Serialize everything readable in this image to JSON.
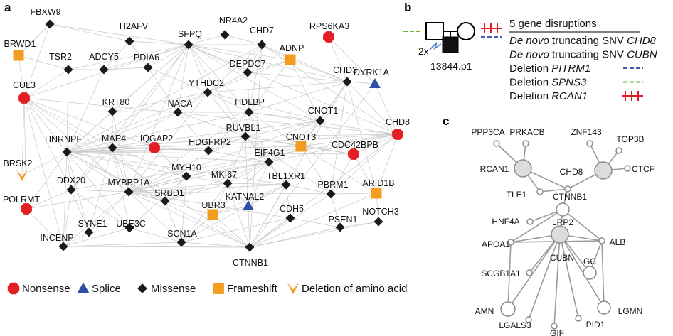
{
  "panel_labels": {
    "a": "a",
    "b": "b",
    "c": "c"
  },
  "colors": {
    "nonsense": "#e31e24",
    "splice": "#2e4fa3",
    "missense": "#1a1a1a",
    "frameshift": "#f39c1f",
    "deletion": "#f39c1f",
    "green": "#6ab23e",
    "blue": "#4a55b5",
    "red": "#e31e24"
  },
  "legend": [
    {
      "shape": "octagon",
      "label": "Nonsense"
    },
    {
      "shape": "triangle",
      "label": "Splice"
    },
    {
      "shape": "diamond",
      "label": "Missense"
    },
    {
      "shape": "square",
      "label": "Frameshift"
    },
    {
      "shape": "chevron",
      "label": "Deletion of amino acid"
    }
  ],
  "network_a": {
    "nodes": [
      {
        "id": "FBXW9",
        "type": "missense"
      },
      {
        "id": "H2AFV",
        "type": "missense"
      },
      {
        "id": "NR4A2",
        "type": "missense"
      },
      {
        "id": "CHD7",
        "type": "missense"
      },
      {
        "id": "RPS6KA3",
        "type": "nonsense"
      },
      {
        "id": "BRWD1",
        "type": "frameshift"
      },
      {
        "id": "TSR2",
        "type": "missense"
      },
      {
        "id": "ADCY5",
        "type": "missense"
      },
      {
        "id": "PDIA6",
        "type": "missense"
      },
      {
        "id": "SFPQ",
        "type": "missense"
      },
      {
        "id": "DEPDC7",
        "type": "missense"
      },
      {
        "id": "ADNP",
        "type": "frameshift"
      },
      {
        "id": "CHD3",
        "type": "missense"
      },
      {
        "id": "DYRK1A",
        "type": "splice"
      },
      {
        "id": "CUL3",
        "type": "nonsense"
      },
      {
        "id": "YTHDC2",
        "type": "missense"
      },
      {
        "id": "KRT80",
        "type": "missense"
      },
      {
        "id": "NACA",
        "type": "missense"
      },
      {
        "id": "HDLBP",
        "type": "missense"
      },
      {
        "id": "CNOT1",
        "type": "missense"
      },
      {
        "id": "CHD8",
        "type": "nonsense"
      },
      {
        "id": "RUVBL1",
        "type": "missense"
      },
      {
        "id": "HNRNPF",
        "type": "missense"
      },
      {
        "id": "MAP4",
        "type": "missense"
      },
      {
        "id": "IQGAP2",
        "type": "nonsense"
      },
      {
        "id": "HDGFRP2",
        "type": "missense"
      },
      {
        "id": "CNOT3",
        "type": "frameshift"
      },
      {
        "id": "CDC42BPB",
        "type": "nonsense"
      },
      {
        "id": "EIF4G1",
        "type": "missense"
      },
      {
        "id": "BRSK2",
        "type": "deletion"
      },
      {
        "id": "MYH10",
        "type": "missense"
      },
      {
        "id": "MKI67",
        "type": "missense"
      },
      {
        "id": "TBL1XR1",
        "type": "missense"
      },
      {
        "id": "ARID1B",
        "type": "frameshift"
      },
      {
        "id": "DDX20",
        "type": "missense"
      },
      {
        "id": "MYBBP1A",
        "type": "missense"
      },
      {
        "id": "SRBD1",
        "type": "missense"
      },
      {
        "id": "KATNAL2",
        "type": "splice"
      },
      {
        "id": "PBRM1",
        "type": "missense"
      },
      {
        "id": "POLRMT",
        "type": "nonsense"
      },
      {
        "id": "UBR3",
        "type": "frameshift"
      },
      {
        "id": "CDH5",
        "type": "missense"
      },
      {
        "id": "SYNE1",
        "type": "missense"
      },
      {
        "id": "UBE3C",
        "type": "missense"
      },
      {
        "id": "SCN1A",
        "type": "missense"
      },
      {
        "id": "PSEN1",
        "type": "missense"
      },
      {
        "id": "NOTCH3",
        "type": "missense"
      },
      {
        "id": "INCENP",
        "type": "missense"
      },
      {
        "id": "CTNNB1",
        "type": "missense"
      }
    ],
    "edges": [
      [
        "SFPQ",
        "FBXW9"
      ],
      [
        "SFPQ",
        "H2AFV"
      ],
      [
        "SFPQ",
        "NR4A2"
      ],
      [
        "SFPQ",
        "CHD7"
      ],
      [
        "SFPQ",
        "TSR2"
      ],
      [
        "SFPQ",
        "ADCY5"
      ],
      [
        "SFPQ",
        "PDIA6"
      ],
      [
        "SFPQ",
        "DEPDC7"
      ],
      [
        "SFPQ",
        "ADNP"
      ],
      [
        "SFPQ",
        "CHD3"
      ],
      [
        "SFPQ",
        "CUL3"
      ],
      [
        "SFPQ",
        "YTHDC2"
      ],
      [
        "SFPQ",
        "HDLBP"
      ],
      [
        "SFPQ",
        "NACA"
      ],
      [
        "SFPQ",
        "KRT80"
      ],
      [
        "SFPQ",
        "CNOT1"
      ],
      [
        "SFPQ",
        "HNRNPF"
      ],
      [
        "SFPQ",
        "RUVBL1"
      ],
      [
        "SFPQ",
        "MAP4"
      ],
      [
        "SFPQ",
        "CHD8"
      ],
      [
        "SFPQ",
        "MYBBP1A"
      ],
      [
        "SFPQ",
        "DDX20"
      ],
      [
        "CHD7",
        "CHD3"
      ],
      [
        "CHD7",
        "CHD8"
      ],
      [
        "CHD7",
        "ADNP"
      ],
      [
        "CHD7",
        "DEPDC7"
      ],
      [
        "CHD7",
        "HNRNPF"
      ],
      [
        "CHD7",
        "YTHDC2"
      ],
      [
        "CHD7",
        "HDLBP"
      ],
      [
        "CHD7",
        "CTNNB1"
      ],
      [
        "CHD8",
        "CHD3"
      ],
      [
        "CHD8",
        "CTNNB1"
      ],
      [
        "CHD8",
        "CNOT3"
      ],
      [
        "CHD8",
        "CDC42BPB"
      ],
      [
        "CHD8",
        "HNRNPF"
      ],
      [
        "CHD8",
        "DYRK1A"
      ],
      [
        "CHD8",
        "HDLBP"
      ],
      [
        "CHD8",
        "RUVBL1"
      ],
      [
        "CHD8",
        "ARID1B"
      ],
      [
        "CHD8",
        "PBRM1"
      ],
      [
        "CHD8",
        "MYBBP1A"
      ],
      [
        "CHD8",
        "DDX20"
      ],
      [
        "CTNNB1",
        "CDH5"
      ],
      [
        "CTNNB1",
        "PSEN1"
      ],
      [
        "CTNNB1",
        "NOTCH3"
      ],
      [
        "CTNNB1",
        "TBL1XR1"
      ],
      [
        "CTNNB1",
        "PBRM1"
      ],
      [
        "CTNNB1",
        "SCN1A"
      ],
      [
        "CTNNB1",
        "INCENP"
      ],
      [
        "CTNNB1",
        "CUL3"
      ],
      [
        "CTNNB1",
        "HNRNPF"
      ],
      [
        "CTNNB1",
        "RUVBL1"
      ],
      [
        "CTNNB1",
        "MKI67"
      ],
      [
        "CTNNB1",
        "ARID1B"
      ],
      [
        "CTNNB1",
        "UBR3"
      ],
      [
        "CTNNB1",
        "DYRK1A"
      ],
      [
        "CTNNB1",
        "CHD3"
      ],
      [
        "CTNNB1",
        "MYBBP1A"
      ],
      [
        "HNRNPF",
        "TSR2"
      ],
      [
        "HNRNPF",
        "ADCY5"
      ],
      [
        "HNRNPF",
        "KRT80"
      ],
      [
        "HNRNPF",
        "NACA"
      ],
      [
        "HNRNPF",
        "MAP4"
      ],
      [
        "HNRNPF",
        "IQGAP2"
      ],
      [
        "HNRNPF",
        "HDGFRP2"
      ],
      [
        "HNRNPF",
        "HDLBP"
      ],
      [
        "HNRNPF",
        "CNOT1"
      ],
      [
        "HNRNPF",
        "CNOT3"
      ],
      [
        "HNRNPF",
        "EIF4G1"
      ],
      [
        "HNRNPF",
        "RUVBL1"
      ],
      [
        "HNRNPF",
        "YTHDC2"
      ],
      [
        "HNRNPF",
        "DDX20"
      ],
      [
        "HNRNPF",
        "SYNE1"
      ],
      [
        "HNRNPF",
        "INCENP"
      ],
      [
        "HNRNPF",
        "MYBBP1A"
      ],
      [
        "HNRNPF",
        "BRSK2"
      ],
      [
        "HNRNPF",
        "POLRMT"
      ],
      [
        "HNRNPF",
        "CUL3"
      ],
      [
        "HNRNPF",
        "UBE3C"
      ],
      [
        "HNRNPF",
        "MYH10"
      ],
      [
        "HNRNPF",
        "SRBD1"
      ],
      [
        "HNRNPF",
        "CDC42BPB"
      ],
      [
        "HNRNPF",
        "TBL1XR1"
      ],
      [
        "CUL3",
        "BRWD1"
      ],
      [
        "CUL3",
        "FBXW9"
      ],
      [
        "CUL3",
        "TSR2"
      ],
      [
        "CUL3",
        "DDX20"
      ],
      [
        "CUL3",
        "POLRMT"
      ],
      [
        "CUL3",
        "BRSK2"
      ],
      [
        "CUL3",
        "INCENP"
      ],
      [
        "CUL3",
        "MAP4"
      ],
      [
        "CUL3",
        "CHD8"
      ],
      [
        "CUL3",
        "MYBBP1A"
      ],
      [
        "CUL3",
        "IQGAP2"
      ],
      [
        "MYBBP1A",
        "RUVBL1"
      ],
      [
        "MYBBP1A",
        "HDLBP"
      ],
      [
        "MYBBP1A",
        "EIF4G1"
      ],
      [
        "MYBBP1A",
        "MKI67"
      ],
      [
        "MYBBP1A",
        "SRBD1"
      ],
      [
        "MYBBP1A",
        "UBE3C"
      ],
      [
        "MYBBP1A",
        "DDX20"
      ],
      [
        "MYBBP1A",
        "INCENP"
      ],
      [
        "MYBBP1A",
        "MYH10"
      ],
      [
        "MYBBP1A",
        "SCN1A"
      ],
      [
        "MYBBP1A",
        "SYNE1"
      ],
      [
        "MYBBP1A",
        "UBR3"
      ],
      [
        "MYBBP1A",
        "POLRMT"
      ],
      [
        "MYBBP1A",
        "MAP4"
      ],
      [
        "MYBBP1A",
        "CNOT1"
      ],
      [
        "MYBBP1A",
        "TBL1XR1"
      ],
      [
        "MYBBP1A",
        "PBRM1"
      ],
      [
        "MYBBP1A",
        "CNOT3"
      ],
      [
        "MYBBP1A",
        "CDH5"
      ],
      [
        "MYBBP1A",
        "KRT80"
      ],
      [
        "MYBBP1A",
        "YTHDC2"
      ],
      [
        "DDX20",
        "INCENP"
      ],
      [
        "DDX20",
        "SYNE1"
      ],
      [
        "DDX20",
        "POLRMT"
      ],
      [
        "DDX20",
        "MAP4"
      ],
      [
        "DDX20",
        "UBE3C"
      ],
      [
        "RUVBL1",
        "HDLBP"
      ],
      [
        "RUVBL1",
        "CNOT1"
      ],
      [
        "RUVBL1",
        "CNOT3"
      ],
      [
        "RUVBL1",
        "EIF4G1"
      ],
      [
        "RUVBL1",
        "MKI67"
      ],
      [
        "RUVBL1",
        "TBL1XR1"
      ],
      [
        "RUVBL1",
        "HDGFRP2"
      ],
      [
        "RUVBL1",
        "YTHDC2"
      ],
      [
        "RUVBL1",
        "NACA"
      ],
      [
        "RUVBL1",
        "CDC42BPB"
      ],
      [
        "RUVBL1",
        "MAP4"
      ],
      [
        "RUVBL1",
        "PBRM1"
      ],
      [
        "HDLBP",
        "CNOT1"
      ],
      [
        "HDLBP",
        "CNOT3"
      ],
      [
        "HDLBP",
        "YTHDC2"
      ],
      [
        "HDLBP",
        "NACA"
      ],
      [
        "HDLBP",
        "DEPDC7"
      ],
      [
        "HDLBP",
        "ADNP"
      ],
      [
        "HDLBP",
        "CHD3"
      ],
      [
        "HDLBP",
        "EIF4G1"
      ],
      [
        "HDLBP",
        "HDGFRP2"
      ],
      [
        "CNOT1",
        "CNOT3"
      ],
      [
        "CNOT1",
        "CHD3"
      ],
      [
        "CNOT1",
        "ADNP"
      ],
      [
        "CNOT1",
        "YTHDC2"
      ],
      [
        "CNOT1",
        "CDC42BPB"
      ],
      [
        "CNOT1",
        "EIF4G1"
      ],
      [
        "CHD3",
        "ADNP"
      ],
      [
        "CHD3",
        "DEPDC7"
      ],
      [
        "CHD3",
        "CNOT3"
      ],
      [
        "CHD3",
        "DYRK1A"
      ],
      [
        "CHD3",
        "RPS6KA3"
      ],
      [
        "CHD3",
        "YTHDC2"
      ],
      [
        "CHD3",
        "PBRM1"
      ],
      [
        "CHD3",
        "ARID1B"
      ],
      [
        "EIF4G1",
        "MKI67"
      ],
      [
        "EIF4G1",
        "TBL1XR1"
      ],
      [
        "EIF4G1",
        "MYH10"
      ],
      [
        "EIF4G1",
        "SRBD1"
      ],
      [
        "EIF4G1",
        "CNOT3"
      ],
      [
        "EIF4G1",
        "KATNAL2"
      ],
      [
        "EIF4G1",
        "UBR3"
      ],
      [
        "TBL1XR1",
        "PBRM1"
      ],
      [
        "TBL1XR1",
        "MKI67"
      ],
      [
        "TBL1XR1",
        "KATNAL2"
      ],
      [
        "TBL1XR1",
        "CDH5"
      ],
      [
        "TBL1XR1",
        "SCN1A"
      ],
      [
        "TBL1XR1",
        "UBR3"
      ],
      [
        "PBRM1",
        "ARID1B"
      ],
      [
        "PBRM1",
        "CNOT3"
      ],
      [
        "PBRM1",
        "CDC42BPB"
      ],
      [
        "PBRM1",
        "PSEN1"
      ],
      [
        "PSEN1",
        "NOTCH3"
      ],
      [
        "PSEN1",
        "CDH5"
      ],
      [
        "NOTCH3",
        "ARID1B"
      ],
      [
        "MAP4",
        "IQGAP2"
      ],
      [
        "MAP4",
        "KRT80"
      ],
      [
        "MAP4",
        "NACA"
      ],
      [
        "MAP4",
        "HDGFRP2"
      ],
      [
        "MAP4",
        "MYH10"
      ],
      [
        "MAP4",
        "SYNE1"
      ],
      [
        "MAP4",
        "UBE3C"
      ],
      [
        "MAP4",
        "SRBD1"
      ],
      [
        "MYH10",
        "MKI67"
      ],
      [
        "MYH10",
        "SRBD1"
      ],
      [
        "MYH10",
        "IQGAP2"
      ],
      [
        "MYH10",
        "UBE3C"
      ],
      [
        "MYH10",
        "SCN1A"
      ],
      [
        "MKI67",
        "SRBD1"
      ],
      [
        "MKI67",
        "KATNAL2"
      ],
      [
        "MKI67",
        "UBR3"
      ],
      [
        "MKI67",
        "SCN1A"
      ],
      [
        "SCN1A",
        "UBE3C"
      ],
      [
        "SCN1A",
        "UBR3"
      ],
      [
        "SCN1A",
        "SRBD1"
      ],
      [
        "INCENP",
        "SYNE1"
      ],
      [
        "INCENP",
        "CTNNB1"
      ],
      [
        "INCENP",
        "UBE3C"
      ],
      [
        "INCENP",
        "SCN1A"
      ],
      [
        "INCENP",
        "POLRMT"
      ],
      [
        "YTHDC2",
        "DEPDC7"
      ],
      [
        "YTHDC2",
        "NACA"
      ],
      [
        "YTHDC2",
        "KRT80"
      ],
      [
        "YTHDC2",
        "PDIA6"
      ],
      [
        "YTHDC2",
        "ADNP"
      ],
      [
        "NACA",
        "KRT80"
      ],
      [
        "NACA",
        "PDIA6"
      ],
      [
        "NACA",
        "HDGFRP2"
      ],
      [
        "ADCY5",
        "PDIA6"
      ],
      [
        "ADCY5",
        "TSR2"
      ],
      [
        "H2AFV",
        "PDIA6"
      ],
      [
        "H2AFV",
        "ADCY5"
      ],
      [
        "H2AFV",
        "FBXW9"
      ],
      [
        "NR4A2",
        "CHD7"
      ],
      [
        "DEPDC7",
        "ADNP"
      ],
      [
        "HDGFRP2",
        "IQGAP2"
      ],
      [
        "HDGFRP2",
        "EIF4G1"
      ],
      [
        "CNOT3",
        "CDC42BPB"
      ],
      [
        "CNOT3",
        "ARID1B"
      ],
      [
        "CDC42BPB",
        "ARID1B"
      ],
      [
        "DYRK1A",
        "RPS6KA3"
      ],
      [
        "BRWD1",
        "TSR2"
      ],
      [
        "BRWD1",
        "FBXW9"
      ],
      [
        "KATNAL2",
        "UBR3"
      ],
      [
        "CDH5",
        "SCN1A"
      ]
    ]
  },
  "pedigree": {
    "proband": "13844.p1",
    "multiplier": "2x",
    "title": "5 gene disruptions",
    "items": [
      {
        "prefix": "De novo",
        "rest_plain": " truncating SNV ",
        "gene": "CHD8",
        "mark": "none"
      },
      {
        "prefix": "De novo",
        "rest_plain": " truncating SNV ",
        "gene": "CUBN",
        "mark": "none"
      },
      {
        "prefix": "",
        "rest_plain": "Deletion ",
        "gene": "PITRM1",
        "mark": "blue"
      },
      {
        "prefix": "",
        "rest_plain": "Deletion ",
        "gene": "SPNS3",
        "mark": "green"
      },
      {
        "prefix": "",
        "rest_plain": "Deletion ",
        "gene": "RCAN1",
        "mark": "red"
      }
    ]
  },
  "network_c": {
    "nodes": [
      {
        "id": "PPP3CA",
        "highlight": false
      },
      {
        "id": "PRKACB",
        "highlight": false
      },
      {
        "id": "ZNF143",
        "highlight": false
      },
      {
        "id": "TOP3B",
        "highlight": false
      },
      {
        "id": "RCAN1",
        "highlight": true
      },
      {
        "id": "CHD8",
        "highlight": true
      },
      {
        "id": "CTCF",
        "highlight": false
      },
      {
        "id": "TLE1",
        "highlight": false
      },
      {
        "id": "CTNNB1",
        "highlight": false
      },
      {
        "id": "HNF4A",
        "highlight": false
      },
      {
        "id": "LRP2",
        "highlight": false
      },
      {
        "id": "APOA1",
        "highlight": false
      },
      {
        "id": "ALB",
        "highlight": false
      },
      {
        "id": "CUBN",
        "highlight": true
      },
      {
        "id": "GC",
        "highlight": false
      },
      {
        "id": "SCGB1A1",
        "highlight": false
      },
      {
        "id": "AMN",
        "highlight": false
      },
      {
        "id": "LGALS3",
        "highlight": false
      },
      {
        "id": "GIF",
        "highlight": false
      },
      {
        "id": "PID1",
        "highlight": false
      },
      {
        "id": "LGMN",
        "highlight": false
      }
    ],
    "edges": [
      [
        "PPP3CA",
        "RCAN1"
      ],
      [
        "PRKACB",
        "RCAN1"
      ],
      [
        "RCAN1",
        "TLE1"
      ],
      [
        "RCAN1",
        "CTNNB1"
      ],
      [
        "ZNF143",
        "CHD8"
      ],
      [
        "TOP3B",
        "CHD8"
      ],
      [
        "CTCF",
        "CHD8"
      ],
      [
        "CHD8",
        "CTNNB1"
      ],
      [
        "TLE1",
        "CTNNB1"
      ],
      [
        "CTNNB1",
        "LRP2"
      ],
      [
        "HNF4A",
        "LRP2"
      ],
      [
        "LRP2",
        "APOA1"
      ],
      [
        "LRP2",
        "ALB"
      ],
      [
        "LRP2",
        "CUBN"
      ],
      [
        "APOA1",
        "ALB"
      ],
      [
        "APOA1",
        "CUBN"
      ],
      [
        "ALB",
        "CUBN"
      ],
      [
        "ALB",
        "GC"
      ],
      [
        "CUBN",
        "GC"
      ],
      [
        "CUBN",
        "SCGB1A1"
      ],
      [
        "CUBN",
        "AMN"
      ],
      [
        "CUBN",
        "LGALS3"
      ],
      [
        "CUBN",
        "GIF"
      ],
      [
        "CUBN",
        "PID1"
      ],
      [
        "CUBN",
        "LGMN"
      ],
      [
        "APOA1",
        "AMN"
      ],
      [
        "ALB",
        "LGMN"
      ]
    ]
  }
}
